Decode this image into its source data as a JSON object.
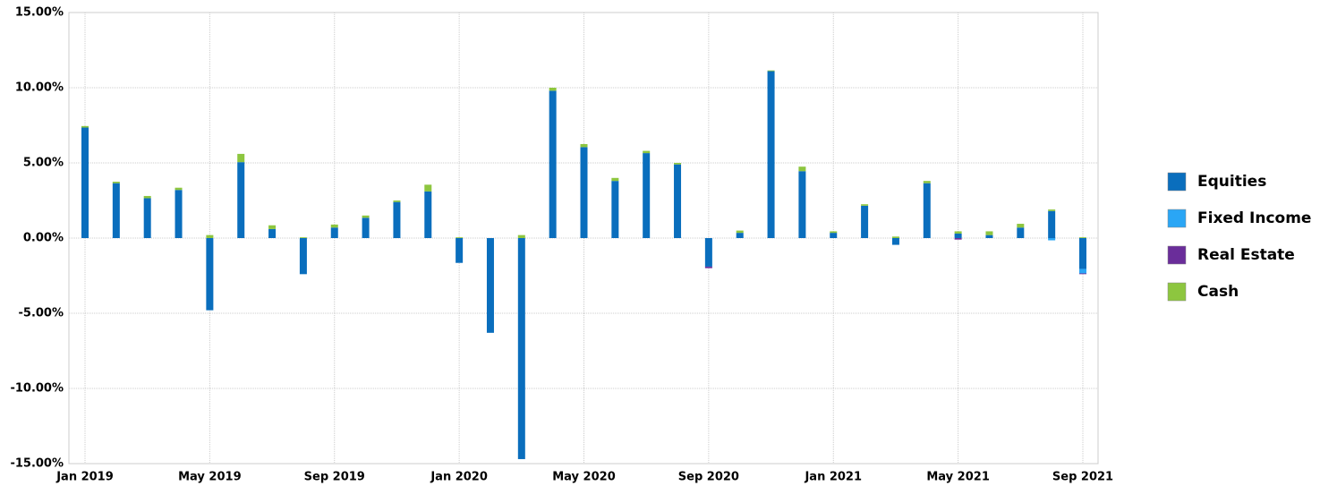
{
  "chart_data": {
    "type": "stacked_bar",
    "categories": [
      "Jan 2019",
      null,
      null,
      null,
      "May 2019",
      null,
      null,
      null,
      "Sep 2019",
      null,
      null,
      null,
      "Jan 2020",
      null,
      null,
      null,
      "May 2020",
      null,
      null,
      null,
      "Sep 2020",
      null,
      null,
      null,
      "Jan 2021",
      null,
      null,
      null,
      "May 2021",
      null,
      null,
      null,
      "Sep 2021"
    ],
    "series": [
      {
        "name": "Equities",
        "color": "#0a6ebd",
        "values": [
          7.35,
          3.65,
          2.65,
          3.2,
          -4.8,
          5.05,
          0.6,
          -2.4,
          0.7,
          1.35,
          2.4,
          3.1,
          -1.65,
          -6.3,
          -14.7,
          9.8,
          6.05,
          3.8,
          5.65,
          4.9,
          -1.9,
          0.35,
          11.1,
          4.45,
          0.35,
          2.15,
          -0.45,
          3.65,
          0.3,
          0.2,
          0.7,
          1.8,
          -2.05
        ]
      },
      {
        "name": "Fixed Income",
        "color": "#2aa6f5",
        "values": [
          0,
          0,
          0,
          0,
          0,
          0,
          0,
          0,
          0,
          0,
          0,
          0,
          0,
          0,
          0,
          0,
          0,
          0,
          0,
          0,
          0,
          0,
          0,
          0,
          0,
          0,
          0,
          0,
          0,
          0,
          0,
          -0.15,
          -0.3
        ]
      },
      {
        "name": "Real Estate",
        "color": "#6a2d9a",
        "values": [
          0,
          0,
          0,
          0,
          0,
          0,
          0,
          0,
          0,
          0,
          0,
          0,
          0,
          0,
          0,
          0,
          0,
          0,
          0,
          0,
          -0.1,
          0,
          0,
          0,
          0,
          0,
          0,
          0,
          -0.1,
          0,
          0,
          0,
          -0.05
        ]
      },
      {
        "name": "Cash",
        "color": "#8dc63f",
        "values": [
          0.1,
          0.1,
          0.15,
          0.15,
          0.2,
          0.55,
          0.25,
          0.05,
          0.2,
          0.15,
          0.1,
          0.45,
          0.05,
          0,
          0.2,
          0.2,
          0.2,
          0.2,
          0.15,
          0.1,
          0,
          0.15,
          0.05,
          0.3,
          0.1,
          0.1,
          0.1,
          0.15,
          0.15,
          0.25,
          0.25,
          0.1,
          0.05
        ]
      }
    ],
    "ylim": [
      -15,
      15
    ],
    "yticks": [
      {
        "value": -15,
        "label": "-15.00%"
      },
      {
        "value": -10,
        "label": "-10.00%"
      },
      {
        "value": -5,
        "label": "-5.00%"
      },
      {
        "value": 0,
        "label": "0.00%"
      },
      {
        "value": 5,
        "label": "5.00%"
      },
      {
        "value": 10,
        "label": "10.00%"
      },
      {
        "value": 15,
        "label": "15.00%"
      }
    ],
    "grid": true,
    "legend": "right"
  }
}
